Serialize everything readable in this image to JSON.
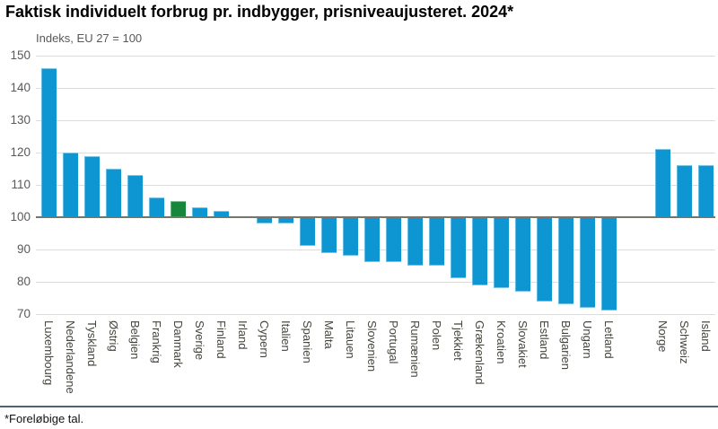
{
  "title": "Faktisk individuelt forbrug pr. indbygger, prisniveaujusteret. 2024*",
  "subtitle": "Indeks, EU 27 = 100",
  "footnote": "*Foreløbige tal.",
  "colors": {
    "bar_blue": "#0d96d2",
    "bar_highlight_green": "#17873c",
    "gridline": "#dcdcdc",
    "baseline_100": "#75756b",
    "separator": "#526270",
    "axis_text": "#595959",
    "category_text": "#45453e"
  },
  "chart_data": {
    "type": "bar",
    "title": "Faktisk individuelt forbrug pr. indbygger, prisniveaujusteret. 2024*",
    "subtitle": "Indeks, EU 27 = 100",
    "ylabel": "Indeks, EU 27 = 100",
    "xlabel": "",
    "ylim": [
      70,
      150
    ],
    "yticks": [
      150,
      140,
      130,
      120,
      110,
      100,
      90,
      80,
      70
    ],
    "baseline": 100,
    "grid": true,
    "legend": "none",
    "highlight_category": "Danmark",
    "gap_before_category": "Norge",
    "categories": [
      "Luxembourg",
      "Nederlandene",
      "Tyskland",
      "Østrig",
      "Belgien",
      "Frankrig",
      "Danmark",
      "Sverige",
      "Finland",
      "Irland",
      "Cypern",
      "Italien",
      "Spanien",
      "Malta",
      "Litauen",
      "Slovenien",
      "Portugal",
      "Rumænien",
      "Polen",
      "Tjekkiet",
      "Grækenland",
      "Kroatien",
      "Slovakiet",
      "Estland",
      "Bulgarien",
      "Ungarn",
      "Letland",
      "Norge",
      "Schweiz",
      "Island"
    ],
    "values": [
      146,
      120,
      119,
      115,
      113,
      106,
      105,
      103,
      102,
      100,
      98,
      98,
      91,
      89,
      88,
      86,
      86,
      85,
      85,
      81,
      79,
      78,
      77,
      74,
      73,
      72,
      71,
      121,
      116,
      116
    ]
  }
}
